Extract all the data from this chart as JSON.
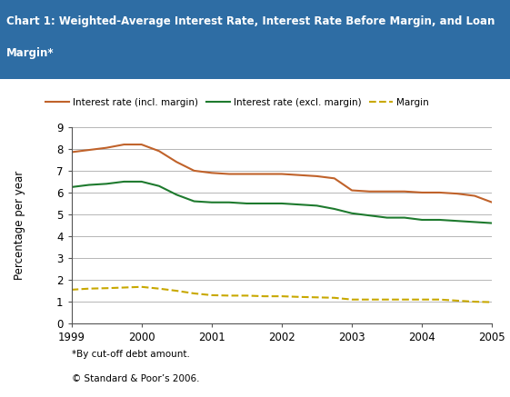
{
  "title_line1": "Chart 1: Weighted-Average Interest Rate, Interest Rate Before Margin, and Loan",
  "title_line2": "Margin*",
  "title_bg_color": "#2E6DA4",
  "title_text_color": "#FFFFFF",
  "ylabel": "Percentage per year",
  "ylim": [
    0,
    9
  ],
  "yticks": [
    0,
    1,
    2,
    3,
    4,
    5,
    6,
    7,
    8,
    9
  ],
  "xtick_labels": [
    "1999",
    "2000",
    "2001",
    "2002",
    "2003",
    "2004",
    "2005"
  ],
  "footnote1": "*By cut-off debt amount.",
  "footnote2": "© Standard & Poor’s 2006.",
  "series": {
    "incl_margin": {
      "label": "Interest rate (incl. margin)",
      "color": "#C0622A",
      "linestyle": "-",
      "linewidth": 1.5,
      "x": [
        1999.0,
        1999.25,
        1999.5,
        1999.75,
        2000.0,
        2000.25,
        2000.5,
        2000.75,
        2001.0,
        2001.25,
        2001.5,
        2001.75,
        2002.0,
        2002.25,
        2002.5,
        2002.75,
        2003.0,
        2003.25,
        2003.5,
        2003.75,
        2004.0,
        2004.25,
        2004.5,
        2004.75,
        2005.0
      ],
      "y": [
        7.85,
        7.95,
        8.05,
        8.2,
        8.2,
        7.9,
        7.4,
        7.0,
        6.9,
        6.85,
        6.85,
        6.85,
        6.85,
        6.8,
        6.75,
        6.65,
        6.1,
        6.05,
        6.05,
        6.05,
        6.0,
        6.0,
        5.95,
        5.85,
        5.55
      ]
    },
    "excl_margin": {
      "label": "Interest rate (excl. margin)",
      "color": "#1E7A2E",
      "linestyle": "-",
      "linewidth": 1.5,
      "x": [
        1999.0,
        1999.25,
        1999.5,
        1999.75,
        2000.0,
        2000.25,
        2000.5,
        2000.75,
        2001.0,
        2001.25,
        2001.5,
        2001.75,
        2002.0,
        2002.25,
        2002.5,
        2002.75,
        2003.0,
        2003.25,
        2003.5,
        2003.75,
        2004.0,
        2004.25,
        2004.5,
        2004.75,
        2005.0
      ],
      "y": [
        6.25,
        6.35,
        6.4,
        6.5,
        6.5,
        6.3,
        5.9,
        5.6,
        5.55,
        5.55,
        5.5,
        5.5,
        5.5,
        5.45,
        5.4,
        5.25,
        5.05,
        4.95,
        4.85,
        4.85,
        4.75,
        4.75,
        4.7,
        4.65,
        4.6
      ]
    },
    "margin": {
      "label": "Margin",
      "color": "#C8A800",
      "linestyle": "--",
      "linewidth": 1.5,
      "x": [
        1999.0,
        1999.25,
        1999.5,
        1999.75,
        2000.0,
        2000.25,
        2000.5,
        2000.75,
        2001.0,
        2001.25,
        2001.5,
        2001.75,
        2002.0,
        2002.25,
        2002.5,
        2002.75,
        2003.0,
        2003.25,
        2003.5,
        2003.75,
        2004.0,
        2004.25,
        2004.5,
        2004.75,
        2005.0
      ],
      "y": [
        1.55,
        1.6,
        1.62,
        1.65,
        1.68,
        1.6,
        1.5,
        1.38,
        1.3,
        1.28,
        1.28,
        1.25,
        1.25,
        1.22,
        1.2,
        1.18,
        1.1,
        1.1,
        1.1,
        1.1,
        1.1,
        1.1,
        1.05,
        1.0,
        0.98
      ]
    }
  },
  "bg_color": "#FFFFFF",
  "grid_color": "#999999",
  "outer_bg_color": "#FFFFFF"
}
